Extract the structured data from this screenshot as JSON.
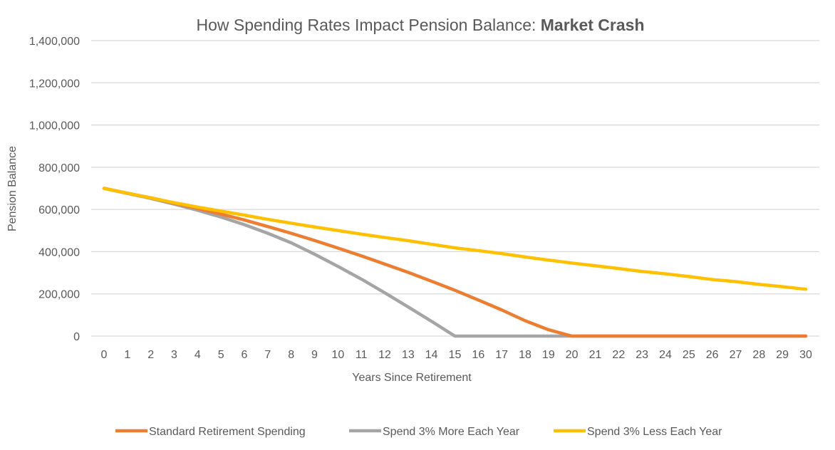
{
  "chart_data": {
    "type": "line",
    "title": "How Spending Rates Impact Pension Balance: ",
    "title_bold": "Market Crash",
    "xlabel": "Years Since Retirement",
    "ylabel": "Pension Balance",
    "ylim": [
      0,
      1400000
    ],
    "yticks": [
      0,
      200000,
      400000,
      600000,
      800000,
      1000000,
      1200000,
      1400000
    ],
    "ytick_labels": [
      "0",
      "200,000",
      "400,000",
      "600,000",
      "800,000",
      "1,000,000",
      "1,200,000",
      "1,400,000"
    ],
    "x": [
      0,
      1,
      2,
      3,
      4,
      5,
      6,
      7,
      8,
      9,
      10,
      11,
      12,
      13,
      14,
      15,
      16,
      17,
      18,
      19,
      20,
      21,
      22,
      23,
      24,
      25,
      26,
      27,
      28,
      29,
      30
    ],
    "grid": "horizontal",
    "legend": "bottom",
    "series": [
      {
        "name": "Standard Retirement Spending",
        "color": "#ED7D31",
        "values": [
          700000,
          677000,
          655000,
          630000,
          605000,
          578000,
          550000,
          519000,
          487000,
          453000,
          417000,
          380000,
          341000,
          302000,
          260000,
          217000,
          171000,
          124000,
          73000,
          30000,
          0,
          0,
          0,
          0,
          0,
          0,
          0,
          0,
          0,
          0,
          0
        ]
      },
      {
        "name": "Spend 3% More Each Year",
        "color": "#A5A5A5",
        "values": [
          700000,
          676000,
          652000,
          625000,
          596000,
          564000,
          528000,
          487000,
          442000,
          388000,
          330000,
          270000,
          205000,
          138000,
          70000,
          0,
          0,
          0,
          0,
          0,
          0,
          0,
          0,
          0,
          0,
          0,
          0,
          0,
          0,
          0,
          0
        ]
      },
      {
        "name": "Spend 3% Less Each Year",
        "color": "#FFC000",
        "values": [
          700000,
          677000,
          655000,
          632000,
          611000,
          592000,
          573000,
          553000,
          535000,
          517000,
          500000,
          483000,
          467000,
          452000,
          435000,
          418000,
          405000,
          391000,
          375000,
          360000,
          346000,
          333000,
          320000,
          306000,
          295000,
          282000,
          268000,
          258000,
          245000,
          234000,
          222000
        ]
      }
    ]
  }
}
